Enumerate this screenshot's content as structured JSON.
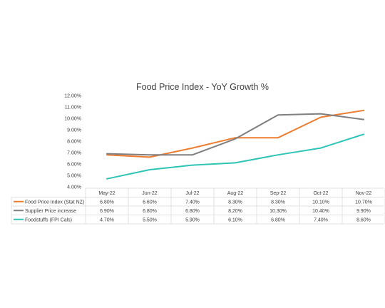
{
  "chart_data": {
    "type": "line",
    "title": "Food Price Index - YoY Growth %",
    "categories": [
      "May-22",
      "Jun-22",
      "Jul-22",
      "Aug-22",
      "Sep-22",
      "Oct-22",
      "Nov-22"
    ],
    "ylim": [
      4.0,
      12.0
    ],
    "yticks": [
      "4.00%",
      "5.00%",
      "6.00%",
      "7.00%",
      "8.00%",
      "9.00%",
      "10.00%",
      "11.00%",
      "12.00%"
    ],
    "grid": false,
    "legend": "data-table-left",
    "series": [
      {
        "name": "Food Price Index (Stat NZ)",
        "color": "#ED7D31",
        "values": [
          6.8,
          6.6,
          7.4,
          8.3,
          8.3,
          10.1,
          10.7
        ],
        "labels": [
          "6.80%",
          "6.60%",
          "7.40%",
          "8.30%",
          "8.30%",
          "10.10%",
          "10.70%"
        ]
      },
      {
        "name": "Supplier Price increase",
        "color": "#7F7F7F",
        "values": [
          6.9,
          6.8,
          6.8,
          8.2,
          10.3,
          10.4,
          9.9
        ],
        "labels": [
          "6.90%",
          "6.80%",
          "6.80%",
          "8.20%",
          "10.30%",
          "10.40%",
          "9.90%"
        ]
      },
      {
        "name": "Foodstuffs (FPI Cals)",
        "color": "#2EC4B6",
        "values": [
          4.7,
          5.5,
          5.9,
          6.1,
          6.8,
          7.4,
          8.6
        ],
        "labels": [
          "4.70%",
          "5.50%",
          "5.90%",
          "6.10%",
          "6.80%",
          "7.40%",
          "8.60%"
        ]
      }
    ]
  }
}
